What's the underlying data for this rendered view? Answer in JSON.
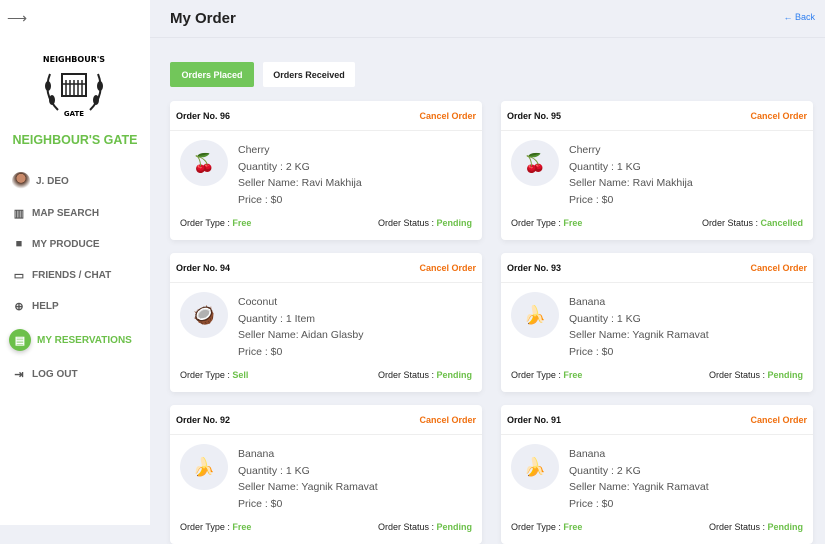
{
  "sidebar": {
    "brand": "NEIGHBOUR'S GATE",
    "logo_text": "NEIGHBOUR'S GATE",
    "items": [
      {
        "label": "J. DEO",
        "icon": "avatar"
      },
      {
        "label": "MAP SEARCH",
        "icon": "map-icon"
      },
      {
        "label": "MY PRODUCE",
        "icon": "bag-icon"
      },
      {
        "label": "FRIENDS / CHAT",
        "icon": "chat-icon"
      },
      {
        "label": "HELP",
        "icon": "lifebuoy-icon"
      },
      {
        "label": "MY RESERVATIONS",
        "icon": "reservation-icon",
        "active": true
      },
      {
        "label": "LOG OUT",
        "icon": "logout-icon"
      }
    ]
  },
  "header": {
    "title": "My Order",
    "back": "← Back"
  },
  "tabs": [
    {
      "label": "Orders Placed",
      "active": true
    },
    {
      "label": "Orders Received"
    }
  ],
  "labels": {
    "cancel": "Cancel Order",
    "type": "Order Type : ",
    "status": "Order Status : "
  },
  "colors": {
    "accent": "#6cc04a",
    "cancel": "#f07010",
    "link": "#2f7ff0"
  },
  "orders": [
    {
      "no": "Order No. 96",
      "item": "Cherry",
      "qty": "Quantity : 2 KG",
      "seller": "Seller Name: Ravi Makhija",
      "price": "Price : $0",
      "type": "Free",
      "status": "Pending",
      "icon": "🍒"
    },
    {
      "no": "Order No. 95",
      "item": "Cherry",
      "qty": "Quantity : 1 KG",
      "seller": "Seller Name: Ravi Makhija",
      "price": "Price : $0",
      "type": "Free",
      "status": "Cancelled",
      "icon": "🍒"
    },
    {
      "no": "Order No. 94",
      "item": "Coconut",
      "qty": "Quantity : 1 Item",
      "seller": "Seller Name: Aidan Glasby",
      "price": "Price : $0",
      "type": "Sell",
      "status": "Pending",
      "icon": "🥥"
    },
    {
      "no": "Order No. 93",
      "item": "Banana",
      "qty": "Quantity : 1 KG",
      "seller": "Seller Name: Yagnik Ramavat",
      "price": "Price : $0",
      "type": "Free",
      "status": "Pending",
      "icon": "🍌"
    },
    {
      "no": "Order No. 92",
      "item": "Banana",
      "qty": "Quantity : 1 KG",
      "seller": "Seller Name: Yagnik Ramavat",
      "price": "Price : $0",
      "type": "Free",
      "status": "Pending",
      "icon": "🍌"
    },
    {
      "no": "Order No. 91",
      "item": "Banana",
      "qty": "Quantity : 2 KG",
      "seller": "Seller Name: Yagnik Ramavat",
      "price": "Price : $0",
      "type": "Free",
      "status": "Pending",
      "icon": "🍌"
    }
  ]
}
